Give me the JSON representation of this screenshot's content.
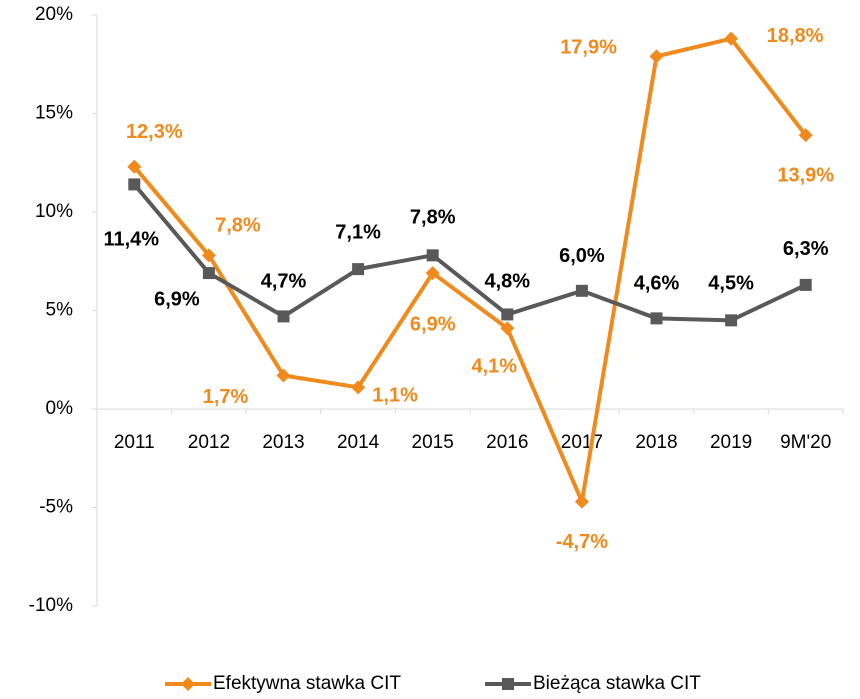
{
  "chart_data": {
    "type": "line",
    "categories": [
      "2011",
      "2012",
      "2013",
      "2014",
      "2015",
      "2016",
      "2017",
      "2018",
      "2019",
      "9M'20"
    ],
    "series": [
      {
        "name": "Efektywna stawka CIT",
        "color": "#f08a1c",
        "marker": "diamond",
        "values": [
          12.3,
          7.8,
          1.7,
          1.1,
          6.9,
          4.1,
          -4.7,
          17.9,
          18.8,
          13.9
        ],
        "value_labels": [
          "12,3%",
          "7,8%",
          "1,7%",
          "1,1%",
          "6,9%",
          "4,1%",
          "-4,7%",
          "17,9%",
          "18,8%",
          "13,9%"
        ]
      },
      {
        "name": "Bieżąca stawka CIT",
        "color": "#595959",
        "marker": "square",
        "values": [
          11.4,
          6.9,
          4.7,
          7.1,
          7.8,
          4.8,
          6.0,
          4.6,
          4.5,
          6.3
        ],
        "value_labels": [
          "11,4%",
          "6,9%",
          "4,7%",
          "7,1%",
          "7,8%",
          "4,8%",
          "6,0%",
          "4,6%",
          "4,5%",
          "6,3%"
        ]
      }
    ],
    "ylim": [
      -10,
      20
    ],
    "yticks": [
      {
        "value": -10,
        "label": "-10%"
      },
      {
        "value": -5,
        "label": "-5%"
      },
      {
        "value": 0,
        "label": "0%"
      },
      {
        "value": 5,
        "label": "5%"
      },
      {
        "value": 10,
        "label": "10%"
      },
      {
        "value": 15,
        "label": "15%"
      },
      {
        "value": 20,
        "label": "20%"
      }
    ],
    "grid": false,
    "legend": "bottom"
  }
}
